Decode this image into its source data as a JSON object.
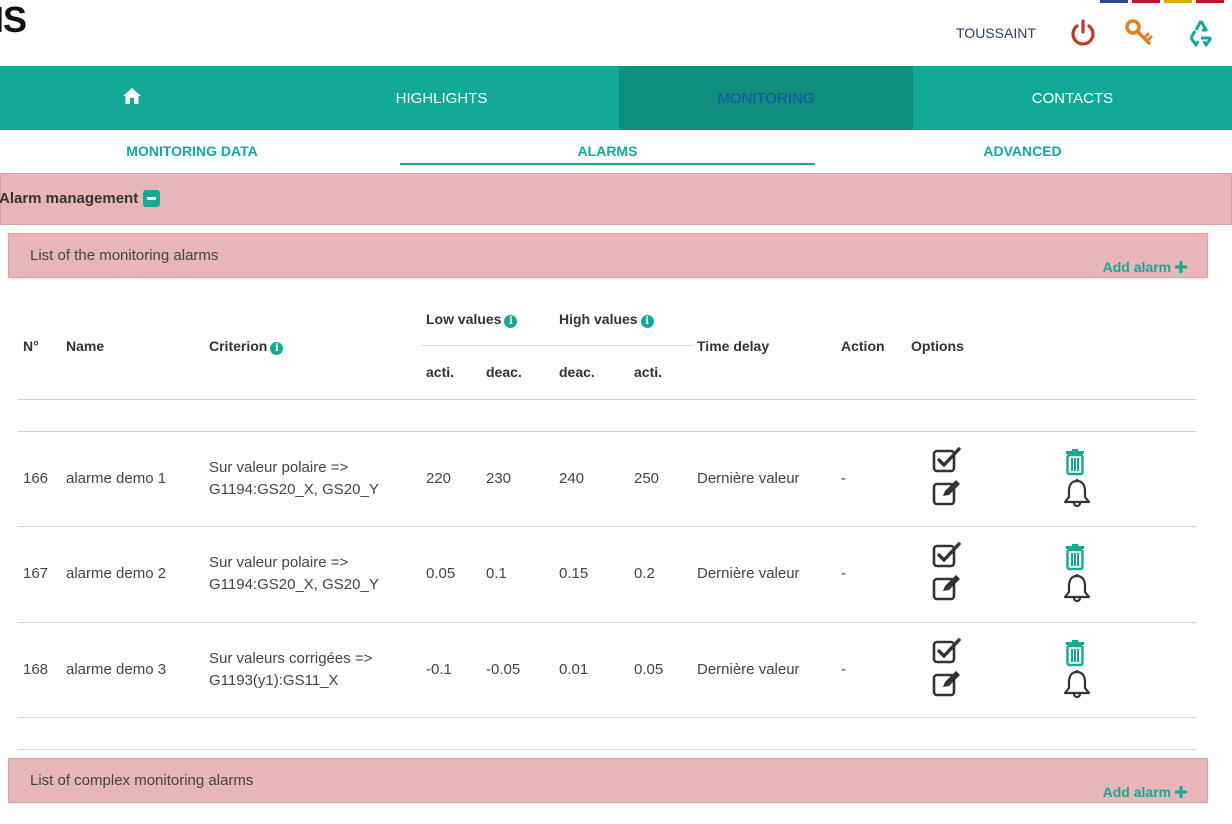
{
  "header": {
    "logo": "IS",
    "user": "TOUSSAINT",
    "icons": [
      "power-icon",
      "key-icon",
      "recycle-icon"
    ],
    "flags": [
      "#2a4a8c",
      "#c8102e",
      "#d9b000",
      "#c8102e"
    ]
  },
  "nav": {
    "items": [
      {
        "label": "",
        "icon": "home-icon"
      },
      {
        "label": "HIGHLIGHTS"
      },
      {
        "label": "MONITORING",
        "active": true
      },
      {
        "label": "CONTACTS"
      }
    ]
  },
  "subtabs": {
    "items": [
      {
        "label": "MONITORING DATA"
      },
      {
        "label": "ALARMS",
        "active": true
      },
      {
        "label": "ADVANCED"
      }
    ]
  },
  "alarm_management": {
    "title": "Alarm management",
    "monitoring_panel": {
      "title": "List of the monitoring alarms",
      "add": "Add alarm"
    },
    "complex_panel": {
      "title": "List of complex monitoring alarms",
      "add": "Add alarm"
    }
  },
  "table": {
    "headers": {
      "number": "N°",
      "name": "Name",
      "criterion": "Criterion",
      "low_values": "Low values",
      "high_values": "High values",
      "acti": "acti.",
      "deac": "deac.",
      "deac2": "deac.",
      "acti2": "acti.",
      "time_delay": "Time delay",
      "action": "Action",
      "options": "Options"
    },
    "rows": [
      {
        "number": "166",
        "name": "alarme demo 1",
        "criterion_line1": "Sur valeur polaire =>",
        "criterion_line2": "G1194:GS20_X, GS20_Y",
        "low_acti": "220",
        "low_deac": "230",
        "high_deac": "240",
        "high_acti": "250",
        "time_delay": "Dernière valeur",
        "action": "-"
      },
      {
        "number": "167",
        "name": "alarme demo 2",
        "criterion_line1": "Sur valeur polaire =>",
        "criterion_line2": "G1194:GS20_X, GS20_Y",
        "low_acti": "0.05",
        "low_deac": "0.1",
        "high_deac": "0.15",
        "high_acti": "0.2",
        "time_delay": "Dernière valeur",
        "action": "-"
      },
      {
        "number": "168",
        "name": "alarme demo 3",
        "criterion_line1": "Sur valeurs corrigées =>",
        "criterion_line2": "G1193(y1):GS11_X",
        "low_acti": "-0.1",
        "low_deac": "-0.05",
        "high_deac": "0.01",
        "high_acti": "0.05",
        "time_delay": "Dernière valeur",
        "action": "-"
      }
    ]
  },
  "colors": {
    "accent": "#12a997",
    "accent_dark": "#0f8e80",
    "panel": "#e8b6b9",
    "active_nav_text": "#1b4fa8",
    "power": "#c0392b",
    "key": "#e67e22",
    "recycle": "#12a997"
  }
}
